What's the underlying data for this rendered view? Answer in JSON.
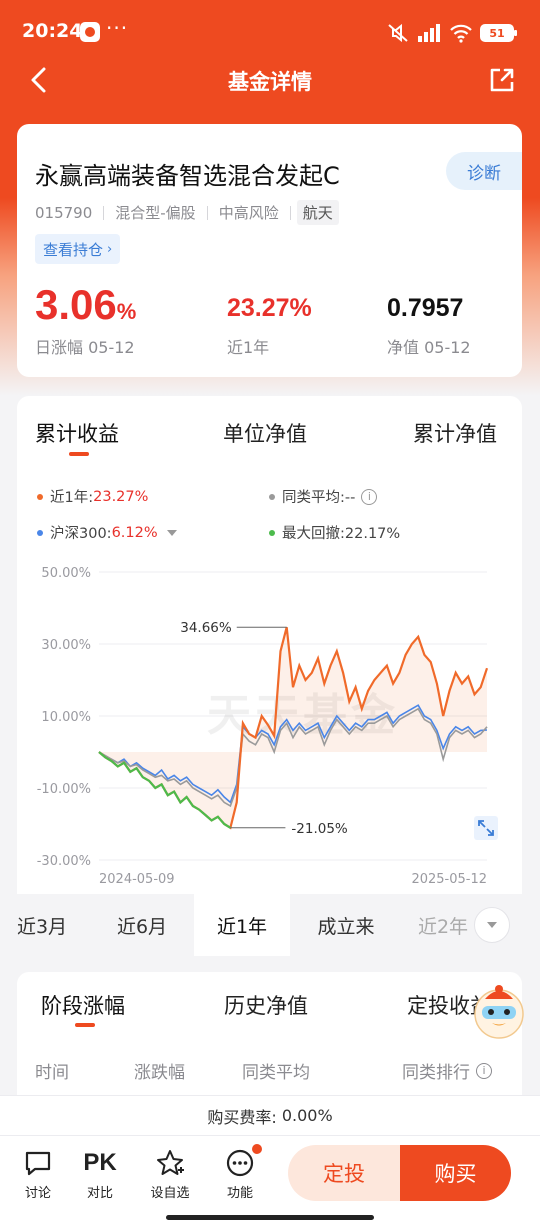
{
  "status_bar": {
    "time": "20:24",
    "more": "···",
    "battery": "51"
  },
  "nav": {
    "title": "基金详情"
  },
  "fund": {
    "name": "永赢高端装备智选混合发起C",
    "diagnose_label": "诊断",
    "code": "015790",
    "type": "混合型-偏股",
    "risk": "中高风险",
    "theme": "航天",
    "holdings_label": "查看持仓",
    "daily_change": "3.06",
    "daily_change_unit": "%",
    "daily_change_label": "日涨幅 05-12",
    "one_year_return": "23.27%",
    "one_year_label": "近1年",
    "nav_value": "0.7957",
    "nav_label": "净值 05-12"
  },
  "chart_tabs": [
    "累计收益",
    "单位净值",
    "累计净值"
  ],
  "legend": {
    "fund_label": "近1年:",
    "fund_value": "23.27%",
    "peer_label": "同类平均:--",
    "index_label": "沪深300:",
    "index_value": "6.12%",
    "drawdown_label": "最大回撤:22.17%"
  },
  "colors": {
    "accent": "#ee4a20",
    "fund": "#f06a2a",
    "peer": "#9a9a9a",
    "index": "#4a86e8",
    "drawdown": "#4cbb4c",
    "up": "#e8312b"
  },
  "chart_data": {
    "type": "line",
    "yticks": [
      "50.00%",
      "30.00%",
      "10.00%",
      "-10.00%",
      "-30.00%"
    ],
    "ylim": [
      -30,
      50
    ],
    "x_start_label": "2024-05-09",
    "x_end_label": "2025-05-12",
    "watermark": "天天基金",
    "annotations": {
      "max": "34.66%",
      "min": "-21.05%"
    },
    "series": [
      {
        "name": "近1年",
        "values": [
          0,
          -1.5,
          -2.5,
          -4,
          -3,
          -5.5,
          -4.5,
          -7,
          -8,
          -10,
          -9,
          -12,
          -11,
          -14,
          -12.5,
          -15,
          -16,
          -17.5,
          -19,
          -18,
          -20,
          -21.05,
          -14,
          8,
          5,
          4,
          10,
          7.5,
          4.5,
          28,
          34.66,
          18,
          24,
          20,
          22,
          26,
          19,
          24,
          28,
          22,
          14,
          18,
          12,
          17,
          20,
          22,
          24,
          19,
          22,
          27,
          30,
          32,
          27,
          25,
          19,
          10,
          17,
          22,
          19,
          21,
          16,
          18,
          23.27
        ]
      },
      {
        "name": "同类平均",
        "values": [
          0,
          -1,
          -2,
          -3,
          -2.5,
          -4,
          -3.5,
          -5,
          -6,
          -7,
          -6.5,
          -8,
          -7.5,
          -9,
          -8,
          -10,
          -11,
          -12,
          -13,
          -12,
          -14,
          -15,
          -10,
          5,
          3,
          2,
          5,
          4,
          0,
          6,
          8,
          4,
          7,
          5,
          6,
          7,
          2,
          6,
          9,
          7,
          5,
          7,
          6,
          8,
          8,
          9,
          10,
          7,
          9,
          10,
          11,
          12,
          9,
          8,
          5,
          -2,
          4,
          6,
          5,
          6,
          4,
          5,
          7
        ]
      },
      {
        "name": "沪深300",
        "values": [
          0,
          -1.5,
          -2,
          -3,
          -2,
          -4,
          -3,
          -4.5,
          -5.5,
          -6.5,
          -5,
          -7.5,
          -6.5,
          -8,
          -7,
          -9,
          -10,
          -11,
          -12,
          -10.5,
          -12.5,
          -14,
          -9,
          7,
          5,
          4,
          6,
          5,
          2,
          7,
          9,
          6,
          8,
          6,
          7,
          8,
          4,
          7,
          10,
          8,
          6,
          8,
          7,
          9,
          9,
          10,
          11,
          8,
          10,
          11,
          12,
          13,
          10,
          9,
          6,
          1,
          5,
          7,
          6,
          7,
          5,
          6,
          6.12
        ]
      }
    ]
  },
  "ranges": [
    "近3月",
    "近6月",
    "近1年",
    "成立来",
    "近2年"
  ],
  "perf_tabs": [
    "阶段涨幅",
    "历史净值",
    "定投收益"
  ],
  "perf_headers": [
    "时间",
    "涨跌幅",
    "同类平均",
    "同类排行"
  ],
  "fee": {
    "label": "购买费率:",
    "value": "0.00%"
  },
  "bottom": {
    "discuss": "讨论",
    "pk": "PK",
    "compare": "对比",
    "watchlist": "设自选",
    "functions": "功能",
    "sip": "定投",
    "buy": "购买"
  }
}
